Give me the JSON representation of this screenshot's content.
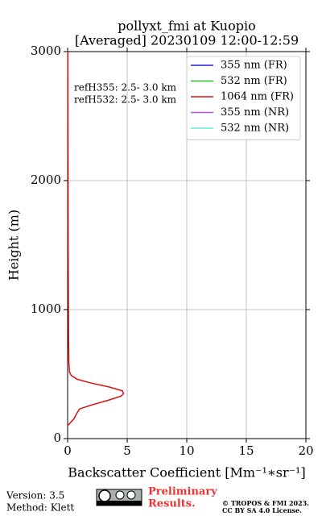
{
  "chart_data": {
    "type": "line",
    "title": [
      "pollyxt_fmi at Kuopio",
      "[Averaged] 20230109 12:00-12:59"
    ],
    "xlabel": "Backscatter Coefficient [Mm⁻¹∗sr⁻¹]",
    "ylabel": "Height (m)",
    "y": [
      100,
      150,
      200,
      230,
      260,
      300,
      330,
      350,
      370,
      400,
      430,
      460,
      490,
      520,
      600,
      800,
      1000,
      1500,
      2000,
      2500,
      3000
    ],
    "series": [
      {
        "name": "355 nm (FR)",
        "color": "#1f1fdd",
        "values": [
          null,
          null,
          null,
          null,
          null,
          null,
          null,
          null,
          null,
          null,
          null,
          null,
          null,
          null,
          null,
          null,
          null,
          null,
          null,
          null,
          null
        ]
      },
      {
        "name": "532 nm (FR)",
        "color": "#22bb22",
        "values": [
          null,
          null,
          null,
          null,
          null,
          null,
          null,
          null,
          null,
          null,
          null,
          null,
          null,
          null,
          null,
          null,
          null,
          null,
          null,
          null,
          null
        ]
      },
      {
        "name": "1064 nm (FR)",
        "color": "#dd1111",
        "values": [
          0,
          0.5,
          0.8,
          1.0,
          2.0,
          3.5,
          4.5,
          4.7,
          4.6,
          3.5,
          2.0,
          0.8,
          0.3,
          0.15,
          0.1,
          0.08,
          0.07,
          0.05,
          0.04,
          0.03,
          0.02
        ]
      },
      {
        "name": "355 nm (NR)",
        "color": "#a855dd",
        "values": [
          null,
          null,
          null,
          null,
          null,
          null,
          null,
          null,
          null,
          null,
          null,
          null,
          null,
          null,
          null,
          null,
          null,
          null,
          null,
          null,
          null
        ]
      },
      {
        "name": "532 nm (NR)",
        "color": "#66eedd",
        "values": [
          null,
          null,
          null,
          null,
          null,
          null,
          null,
          null,
          null,
          null,
          null,
          null,
          null,
          null,
          null,
          null,
          null,
          null,
          null,
          null,
          null
        ]
      }
    ],
    "xlim": [
      0,
      20
    ],
    "xticks": [
      0,
      5,
      10,
      15,
      20
    ],
    "ylim": [
      0,
      3000
    ],
    "yticks": [
      0,
      1000,
      2000,
      3000
    ],
    "grid": true,
    "legend": "upper right",
    "annotations": [
      "refH355:  2.5- 3.0 km",
      "refH532:  2.5- 3.0 km"
    ]
  },
  "footer": {
    "version": "Version: 3.5",
    "method": "Method: Klett",
    "notice": [
      "Preliminary",
      "Results."
    ],
    "copyright": [
      "© TROPOS & FMI 2023.",
      "CC BY SA 4.0 License."
    ]
  }
}
